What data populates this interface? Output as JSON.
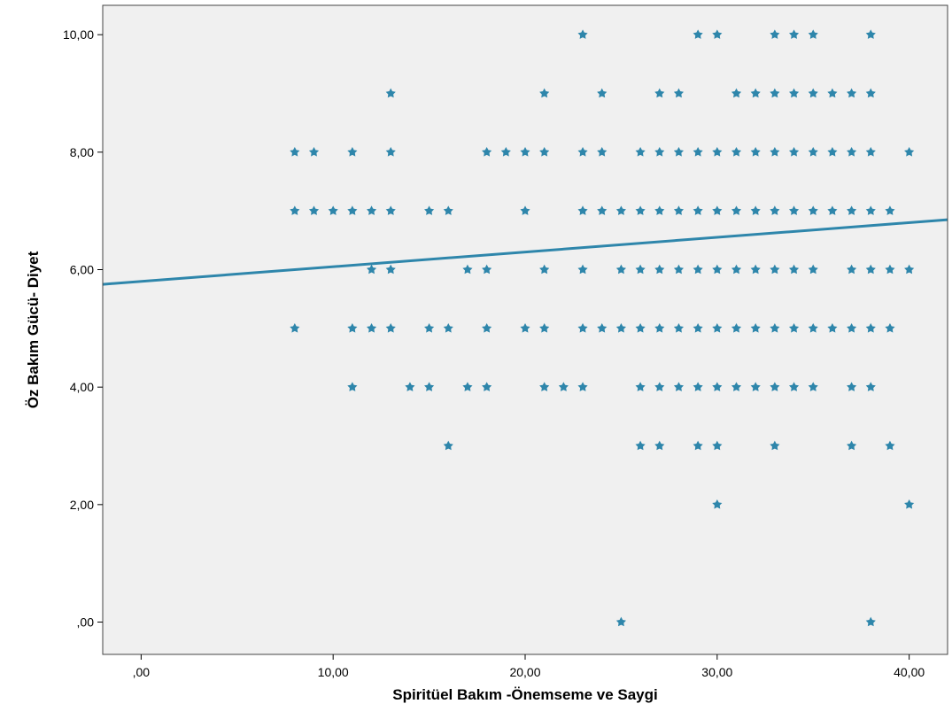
{
  "chart_data": {
    "type": "scatter",
    "title": "",
    "xlabel": "Spiritüel Bakım -Önemseme ve Saygi",
    "ylabel": "Öz Bakım Gücü- Diyet",
    "xlim": [
      -2,
      42
    ],
    "ylim": [
      -0.55,
      10.5
    ],
    "xticks": [
      0,
      10,
      20,
      30,
      40
    ],
    "xtick_labels": [
      ",00",
      "10,00",
      "20,00",
      "30,00",
      "40,00"
    ],
    "yticks": [
      0,
      2,
      4,
      6,
      8,
      10
    ],
    "ytick_labels": [
      ",00",
      "2,00",
      "4,00",
      "6,00",
      "8,00",
      "10,00"
    ],
    "grid": false,
    "background_color": "#f0f0f0",
    "marker_color": "#2e86ab",
    "fit_line": {
      "color": "#2e86ab",
      "x": [
        -2,
        42
      ],
      "y": [
        5.75,
        6.85
      ]
    },
    "points": [
      [
        23,
        10
      ],
      [
        29,
        10
      ],
      [
        30,
        10
      ],
      [
        33,
        10
      ],
      [
        34,
        10
      ],
      [
        35,
        10
      ],
      [
        38,
        10
      ],
      [
        13,
        9
      ],
      [
        21,
        9
      ],
      [
        24,
        9
      ],
      [
        27,
        9
      ],
      [
        28,
        9
      ],
      [
        31,
        9
      ],
      [
        32,
        9
      ],
      [
        33,
        9
      ],
      [
        34,
        9
      ],
      [
        35,
        9
      ],
      [
        36,
        9
      ],
      [
        37,
        9
      ],
      [
        38,
        9
      ],
      [
        8,
        8
      ],
      [
        9,
        8
      ],
      [
        11,
        8
      ],
      [
        13,
        8
      ],
      [
        18,
        8
      ],
      [
        19,
        8
      ],
      [
        20,
        8
      ],
      [
        21,
        8
      ],
      [
        23,
        8
      ],
      [
        24,
        8
      ],
      [
        26,
        8
      ],
      [
        27,
        8
      ],
      [
        28,
        8
      ],
      [
        29,
        8
      ],
      [
        30,
        8
      ],
      [
        31,
        8
      ],
      [
        32,
        8
      ],
      [
        33,
        8
      ],
      [
        34,
        8
      ],
      [
        35,
        8
      ],
      [
        36,
        8
      ],
      [
        37,
        8
      ],
      [
        38,
        8
      ],
      [
        40,
        8
      ],
      [
        8,
        7
      ],
      [
        9,
        7
      ],
      [
        10,
        7
      ],
      [
        11,
        7
      ],
      [
        12,
        7
      ],
      [
        13,
        7
      ],
      [
        15,
        7
      ],
      [
        16,
        7
      ],
      [
        20,
        7
      ],
      [
        23,
        7
      ],
      [
        24,
        7
      ],
      [
        25,
        7
      ],
      [
        26,
        7
      ],
      [
        27,
        7
      ],
      [
        28,
        7
      ],
      [
        29,
        7
      ],
      [
        30,
        7
      ],
      [
        31,
        7
      ],
      [
        32,
        7
      ],
      [
        33,
        7
      ],
      [
        34,
        7
      ],
      [
        35,
        7
      ],
      [
        36,
        7
      ],
      [
        37,
        7
      ],
      [
        38,
        7
      ],
      [
        39,
        7
      ],
      [
        12,
        6
      ],
      [
        13,
        6
      ],
      [
        17,
        6
      ],
      [
        18,
        6
      ],
      [
        21,
        6
      ],
      [
        23,
        6
      ],
      [
        25,
        6
      ],
      [
        26,
        6
      ],
      [
        27,
        6
      ],
      [
        28,
        6
      ],
      [
        29,
        6
      ],
      [
        30,
        6
      ],
      [
        31,
        6
      ],
      [
        32,
        6
      ],
      [
        33,
        6
      ],
      [
        34,
        6
      ],
      [
        35,
        6
      ],
      [
        37,
        6
      ],
      [
        38,
        6
      ],
      [
        39,
        6
      ],
      [
        40,
        6
      ],
      [
        8,
        5
      ],
      [
        11,
        5
      ],
      [
        12,
        5
      ],
      [
        13,
        5
      ],
      [
        15,
        5
      ],
      [
        16,
        5
      ],
      [
        18,
        5
      ],
      [
        20,
        5
      ],
      [
        21,
        5
      ],
      [
        23,
        5
      ],
      [
        24,
        5
      ],
      [
        25,
        5
      ],
      [
        26,
        5
      ],
      [
        27,
        5
      ],
      [
        28,
        5
      ],
      [
        29,
        5
      ],
      [
        30,
        5
      ],
      [
        31,
        5
      ],
      [
        32,
        5
      ],
      [
        33,
        5
      ],
      [
        34,
        5
      ],
      [
        35,
        5
      ],
      [
        36,
        5
      ],
      [
        37,
        5
      ],
      [
        38,
        5
      ],
      [
        39,
        5
      ],
      [
        11,
        4
      ],
      [
        14,
        4
      ],
      [
        15,
        4
      ],
      [
        17,
        4
      ],
      [
        18,
        4
      ],
      [
        21,
        4
      ],
      [
        22,
        4
      ],
      [
        23,
        4
      ],
      [
        26,
        4
      ],
      [
        27,
        4
      ],
      [
        28,
        4
      ],
      [
        29,
        4
      ],
      [
        30,
        4
      ],
      [
        31,
        4
      ],
      [
        32,
        4
      ],
      [
        33,
        4
      ],
      [
        34,
        4
      ],
      [
        35,
        4
      ],
      [
        37,
        4
      ],
      [
        38,
        4
      ],
      [
        16,
        3
      ],
      [
        26,
        3
      ],
      [
        27,
        3
      ],
      [
        29,
        3
      ],
      [
        30,
        3
      ],
      [
        33,
        3
      ],
      [
        37,
        3
      ],
      [
        39,
        3
      ],
      [
        30,
        2
      ],
      [
        40,
        2
      ],
      [
        25,
        0
      ],
      [
        38,
        0
      ]
    ]
  }
}
